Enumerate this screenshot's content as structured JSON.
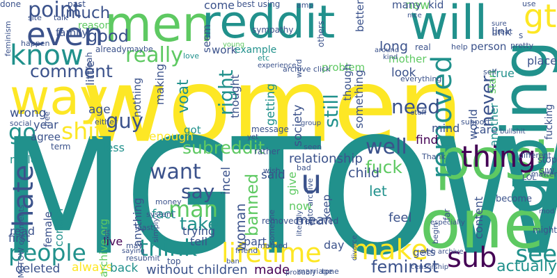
{
  "word_cloud": {
    "background": "#ffffff",
    "palette": [
      "#440154",
      "#3b528b",
      "#21918c",
      "#5ec962",
      "#fde725"
    ],
    "words": [
      {
        "text": "women",
        "color": "#fde725"
      },
      {
        "text": "MGTOW",
        "color": "#21918c"
      },
      {
        "text": "men",
        "color": "#5ec962"
      },
      {
        "text": "reddit",
        "color": "#21918c"
      },
      {
        "text": "will",
        "color": "#21918c"
      },
      {
        "text": "post",
        "color": "#5ec962"
      },
      {
        "text": "one",
        "color": "#5ec962"
      },
      {
        "text": "way",
        "color": "#fde725"
      },
      {
        "text": "even",
        "color": "#3b528b"
      },
      {
        "text": "know",
        "color": "#21918c"
      },
      {
        "text": "point",
        "color": "#3b528b"
      },
      {
        "text": "much",
        "color": "#3b528b"
      },
      {
        "text": "good",
        "color": "#3b528b"
      },
      {
        "text": "really",
        "color": "#5ec962"
      },
      {
        "text": "gt",
        "color": "#fde725"
      },
      {
        "text": "going",
        "color": "#21918c"
      },
      {
        "text": "comment",
        "color": "#3b528b"
      },
      {
        "text": "thing",
        "color": "#440154"
      },
      {
        "text": "want",
        "color": "#3b528b"
      },
      {
        "text": "think",
        "color": "#21918c"
      },
      {
        "text": "people",
        "color": "#21918c"
      },
      {
        "text": "hate",
        "color": "#3b528b"
      },
      {
        "text": "say",
        "color": "#3b528b"
      },
      {
        "text": "man",
        "color": "#5ec962"
      },
      {
        "text": "take",
        "color": "#21918c"
      },
      {
        "text": "u",
        "color": "#3b528b"
      },
      {
        "text": "banned",
        "color": "#5ec962"
      },
      {
        "text": "lifetime",
        "color": "#fde725"
      },
      {
        "text": "make",
        "color": "#fde725"
      },
      {
        "text": "sub",
        "color": "#440154"
      },
      {
        "text": "see",
        "color": "#21918c"
      },
      {
        "text": "feminist",
        "color": "#3b528b"
      },
      {
        "text": "fuck",
        "color": "#5ec962"
      },
      {
        "text": "well",
        "color": "#3b528b"
      },
      {
        "text": "shit",
        "color": "#fde725"
      },
      {
        "text": "guy",
        "color": "#3b528b"
      },
      {
        "text": "removed",
        "color": "#21918c"
      },
      {
        "text": "need",
        "color": "#3b528b"
      },
      {
        "text": "still",
        "color": "#21918c"
      },
      {
        "text": "right",
        "color": "#21918c"
      },
      {
        "text": "never",
        "color": "#3b528b"
      },
      {
        "text": "go",
        "color": "#21918c"
      },
      {
        "text": "woman",
        "color": "#3b528b"
      },
      {
        "text": "subreddit",
        "color": "#5ec962"
      },
      {
        "text": "let",
        "color": "#21918c"
      },
      {
        "text": "long",
        "color": "#3b528b"
      },
      {
        "text": "new",
        "color": "#5ec962"
      },
      {
        "text": "come",
        "color": "#3b528b"
      },
      {
        "text": "actually",
        "color": "#21918c"
      },
      {
        "text": "without children",
        "color": "#3b528b"
      },
      {
        "text": "deleted",
        "color": "#3b528b"
      },
      {
        "text": "always",
        "color": "#fde725"
      },
      {
        "text": "back",
        "color": "#21918c"
      },
      {
        "text": "first",
        "color": "#3b528b"
      },
      {
        "text": "live",
        "color": "#440154"
      },
      {
        "text": "tell",
        "color": "#3b528b"
      },
      {
        "text": "trying",
        "color": "#3b528b"
      },
      {
        "text": "fact",
        "color": "#21918c"
      },
      {
        "text": "made",
        "color": "#440154"
      },
      {
        "text": "said",
        "color": "#3b528b"
      },
      {
        "text": "relationship",
        "color": "#3b528b"
      },
      {
        "text": "child",
        "color": "#3b528b"
      },
      {
        "text": "find",
        "color": "#440154"
      },
      {
        "text": "feel",
        "color": "#3b528b"
      },
      {
        "text": "content",
        "color": "#3b528b"
      },
      {
        "text": "gets",
        "color": "#3b528b"
      },
      {
        "text": "day",
        "color": "#3b528b"
      },
      {
        "text": "mean",
        "color": "#3b528b"
      },
      {
        "text": "part",
        "color": "#3b528b"
      },
      {
        "text": "give",
        "color": "#5ec962"
      },
      {
        "text": "now",
        "color": "#5ec962"
      },
      {
        "text": "incel",
        "color": "#3b528b"
      },
      {
        "text": "keep",
        "color": "#3b528b"
      },
      {
        "text": "enough",
        "color": "#fde725"
      },
      {
        "text": "got",
        "color": "#21918c"
      },
      {
        "text": "less",
        "color": "#21918c"
      },
      {
        "text": "control",
        "color": "#21918c"
      },
      {
        "text": "archive org",
        "color": "#5ec962"
      },
      {
        "text": "anything",
        "color": "#3b528b"
      },
      {
        "text": "female",
        "color": "#3b528b"
      },
      {
        "text": "read",
        "color": "#3b528b"
      },
      {
        "text": "male",
        "color": "#21918c"
      },
      {
        "text": "wrong",
        "color": "#3b528b"
      },
      {
        "text": "year",
        "color": "#3b528b"
      },
      {
        "text": "agree",
        "color": "#3b528b"
      },
      {
        "text": "age",
        "color": "#3b528b"
      },
      {
        "text": "little",
        "color": "#3b528b"
      },
      {
        "text": "making",
        "color": "#3b528b"
      },
      {
        "text": "nothing",
        "color": "#3b528b"
      },
      {
        "text": "voat",
        "color": "#21918c"
      },
      {
        "text": "thought",
        "color": "#3b528b"
      },
      {
        "text": "getting",
        "color": "#21918c"
      },
      {
        "text": "society",
        "color": "#3b528b"
      },
      {
        "text": "something",
        "color": "#3b528b"
      },
      {
        "text": "mind",
        "color": "#3b528b"
      },
      {
        "text": "care",
        "color": "#3b528b"
      },
      {
        "text": "another",
        "color": "#21918c"
      },
      {
        "text": "start",
        "color": "#5ec962"
      },
      {
        "text": "look",
        "color": "#3b528b"
      },
      {
        "text": "fucking",
        "color": "#3b528b"
      },
      {
        "text": "world",
        "color": "#3b528b"
      },
      {
        "text": "person",
        "color": "#3b528b"
      },
      {
        "text": "true",
        "color": "#21918c"
      },
      {
        "text": "link",
        "color": "#3b528b"
      },
      {
        "text": "place",
        "color": "#3b528b"
      },
      {
        "text": "many",
        "color": "#3b528b"
      },
      {
        "text": "kid",
        "color": "#3b528b"
      },
      {
        "text": "mother",
        "color": "#5ec962"
      },
      {
        "text": "problem",
        "color": "#5ec962"
      },
      {
        "text": "though",
        "color": "#3b528b"
      },
      {
        "text": "better",
        "color": "#3b528b"
      },
      {
        "text": "work",
        "color": "#3b528b"
      },
      {
        "text": "example",
        "color": "#21918c"
      },
      {
        "text": "seem",
        "color": "#3b528b"
      },
      {
        "text": "best",
        "color": "#3b528b"
      },
      {
        "text": "reason",
        "color": "#5ec962"
      },
      {
        "text": "family",
        "color": "#3b528b"
      },
      {
        "text": "Yeah",
        "color": "#3b528b"
      },
      {
        "text": "past",
        "color": "#3b528b"
      },
      {
        "text": "using",
        "color": "#3b528b"
      },
      {
        "text": "amp",
        "color": "#3b528b"
      },
      {
        "text": "young",
        "color": "#5ec962"
      },
      {
        "text": "sympathy",
        "color": "#3b528b"
      },
      {
        "text": "others",
        "color": "#3b528b"
      },
      {
        "text": "site",
        "color": "#3b528b"
      },
      {
        "text": "talk",
        "color": "#3b528b"
      },
      {
        "text": "happen",
        "color": "#3b528b"
      },
      {
        "text": "already",
        "color": "#3b528b"
      },
      {
        "text": "maybe",
        "color": "#3b528b"
      },
      {
        "text": "love",
        "color": "#21918c"
      },
      {
        "text": "etc",
        "color": "#21918c"
      },
      {
        "text": "experience",
        "color": "#3b528b"
      },
      {
        "text": "archive click",
        "color": "#3b528b"
      },
      {
        "text": "word",
        "color": "#3b528b"
      },
      {
        "text": "group",
        "color": "#3b528b"
      },
      {
        "text": "message",
        "color": "#3b528b"
      },
      {
        "text": "yet",
        "color": "#3b528b"
      },
      {
        "text": "rather",
        "color": "#3b528b"
      },
      {
        "text": "wish",
        "color": "#3b528b"
      },
      {
        "text": "bad",
        "color": "#3b528b"
      },
      {
        "text": "auto archive",
        "color": "#3b528b"
      },
      {
        "text": "removed removed",
        "color": "#3b528b"
      },
      {
        "text": "someone",
        "color": "#3b528b"
      },
      {
        "text": "literally",
        "color": "#3b528b"
      },
      {
        "text": "divorce",
        "color": "#3b528b"
      },
      {
        "text": "money",
        "color": "#3b528b"
      },
      {
        "text": "system",
        "color": "#3b528b"
      },
      {
        "text": "simply",
        "color": "#3b528b"
      },
      {
        "text": "least",
        "color": "#3b528b"
      },
      {
        "text": "lot",
        "color": "#3b528b"
      },
      {
        "text": "may",
        "color": "#3b528b"
      },
      {
        "text": "saying",
        "color": "#3b528b"
      },
      {
        "text": "resubmit",
        "color": "#3b528b"
      },
      {
        "text": "top",
        "color": "#3b528b"
      },
      {
        "text": "friend",
        "color": "#3b528b"
      },
      {
        "text": "ban",
        "color": "#3b528b"
      },
      {
        "text": "probably",
        "color": "#3b528b"
      },
      {
        "text": "marriage",
        "color": "#3b528b"
      },
      {
        "text": "tone",
        "color": "#3b528b"
      },
      {
        "text": "married",
        "color": "#3b528b"
      },
      {
        "text": "web archive",
        "color": "#3b528b"
      },
      {
        "text": "censorship",
        "color": "#3b528b"
      },
      {
        "text": "begin",
        "color": "#3b528b"
      },
      {
        "text": "especially",
        "color": "#3b528b"
      },
      {
        "text": "far",
        "color": "#3b528b"
      },
      {
        "text": "become",
        "color": "#3b528b"
      },
      {
        "text": "Thank",
        "color": "#3b528b"
      },
      {
        "text": "bullshit",
        "color": "#3b528b"
      },
      {
        "text": "stuff",
        "color": "#3b528b"
      },
      {
        "text": "support",
        "color": "#3b528b"
      },
      {
        "text": "self",
        "color": "#3b528b"
      },
      {
        "text": "everything",
        "color": "#3b528b"
      },
      {
        "text": "help",
        "color": "#3b528b"
      },
      {
        "text": "pretty",
        "color": "#3b528b"
      },
      {
        "text": "real",
        "color": "#3b528b"
      },
      {
        "text": "kind",
        "color": "#3b528b"
      },
      {
        "text": "around",
        "color": "#3b528b"
      },
      {
        "text": "nice",
        "color": "#3b528b"
      },
      {
        "text": "sure",
        "color": "#3b528b"
      },
      {
        "text": "great",
        "color": "#3b528b"
      },
      {
        "text": "use",
        "color": "#3b528b"
      },
      {
        "text": "s",
        "color": "#3b528b"
      },
      {
        "text": "different",
        "color": "#3b528b"
      },
      {
        "text": "stop",
        "color": "#3b528b"
      },
      {
        "text": "LOL",
        "color": "#3b528b"
      },
      {
        "text": "SJW",
        "color": "#3b528b"
      },
      {
        "text": "matter",
        "color": "#3b528b"
      },
      {
        "text": "mod",
        "color": "#3b528b"
      },
      {
        "text": "might",
        "color": "#3b528b"
      },
      {
        "text": "seen",
        "color": "#3b528b"
      },
      {
        "text": "either",
        "color": "#3b528b"
      },
      {
        "text": "term",
        "color": "#3b528b"
      },
      {
        "text": "social",
        "color": "#3b528b"
      },
      {
        "text": "free",
        "color": "#3b528b"
      },
      {
        "text": "feminism",
        "color": "#3b528b"
      },
      {
        "text": "MGTOW comments",
        "color": "#3b528b"
      },
      {
        "text": "done",
        "color": "#3b528b"
      }
    ]
  }
}
